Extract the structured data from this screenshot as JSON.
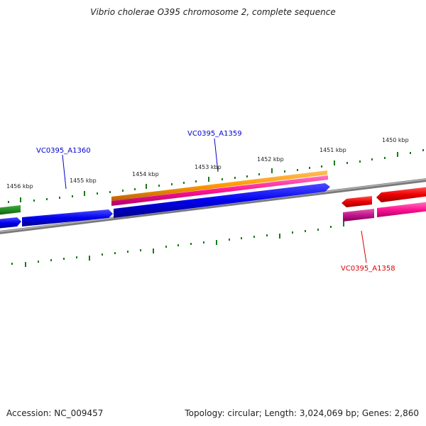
{
  "title": "Vibrio cholerae O395 chromosome 2, complete sequence",
  "footer": {
    "accession": "Accession: NC_009457",
    "summary": "Topology: circular; Length: 3,024,069 bp; Genes: 2,860"
  },
  "tick_labels": [
    "1456 kbp",
    "1455 kbp",
    "1454 kbp",
    "1453 kbp",
    "1452 kbp",
    "1451 kbp",
    "1450 kbp"
  ],
  "gene_labels": {
    "a1360": "VC0395_A1360",
    "a1359": "VC0395_A1359",
    "a1358": "VC0395_A1358"
  },
  "colors": {
    "backbone": "#888888",
    "tick": "#1a7a1a",
    "gene_forward": "#0000ee",
    "gene_reverse": "#ee0000",
    "orange_feature": "#ff9900",
    "pink_feature": "#ff1493",
    "green_feature": "#228b22",
    "label_blue": "#0000cc",
    "label_red": "#dd0000"
  }
}
